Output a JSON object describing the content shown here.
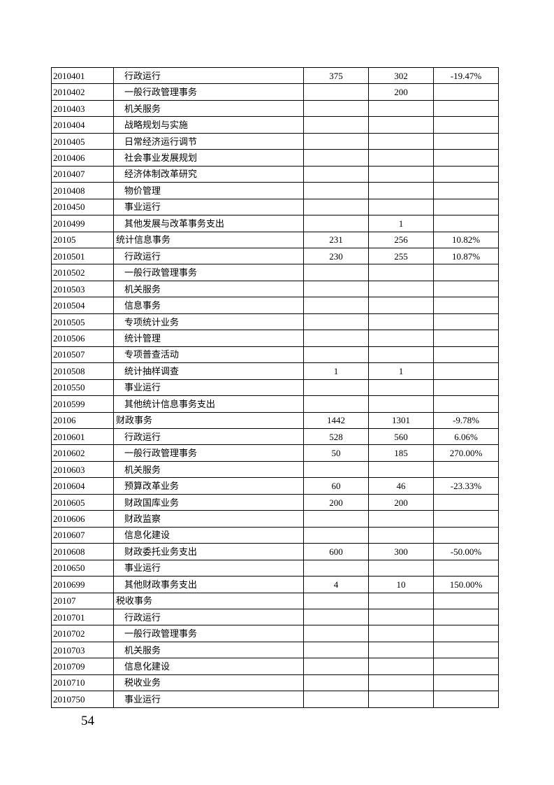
{
  "rows": [
    {
      "code": "2010401",
      "name": "行政运行",
      "level": 2,
      "a": "375",
      "b": "302",
      "c": "-19.47%"
    },
    {
      "code": "2010402",
      "name": "一般行政管理事务",
      "level": 2,
      "a": "",
      "b": "200",
      "c": ""
    },
    {
      "code": "2010403",
      "name": "机关服务",
      "level": 2,
      "a": "",
      "b": "",
      "c": ""
    },
    {
      "code": "2010404",
      "name": "战略规划与实施",
      "level": 2,
      "a": "",
      "b": "",
      "c": ""
    },
    {
      "code": "2010405",
      "name": "日常经济运行调节",
      "level": 2,
      "a": "",
      "b": "",
      "c": ""
    },
    {
      "code": "2010406",
      "name": "社会事业发展规划",
      "level": 2,
      "a": "",
      "b": "",
      "c": ""
    },
    {
      "code": "2010407",
      "name": "经济体制改革研究",
      "level": 2,
      "a": "",
      "b": "",
      "c": ""
    },
    {
      "code": "2010408",
      "name": "物价管理",
      "level": 2,
      "a": "",
      "b": "",
      "c": ""
    },
    {
      "code": "2010450",
      "name": "事业运行",
      "level": 2,
      "a": "",
      "b": "",
      "c": ""
    },
    {
      "code": "2010499",
      "name": "其他发展与改革事务支出",
      "level": 2,
      "a": "",
      "b": "1",
      "c": ""
    },
    {
      "code": "20105",
      "name": "统计信息事务",
      "level": 1,
      "a": "231",
      "b": "256",
      "c": "10.82%"
    },
    {
      "code": "2010501",
      "name": "行政运行",
      "level": 2,
      "a": "230",
      "b": "255",
      "c": "10.87%"
    },
    {
      "code": "2010502",
      "name": "一般行政管理事务",
      "level": 2,
      "a": "",
      "b": "",
      "c": ""
    },
    {
      "code": "2010503",
      "name": "机关服务",
      "level": 2,
      "a": "",
      "b": "",
      "c": ""
    },
    {
      "code": "2010504",
      "name": "信息事务",
      "level": 2,
      "a": "",
      "b": "",
      "c": ""
    },
    {
      "code": "2010505",
      "name": "专项统计业务",
      "level": 2,
      "a": "",
      "b": "",
      "c": ""
    },
    {
      "code": "2010506",
      "name": "统计管理",
      "level": 2,
      "a": "",
      "b": "",
      "c": ""
    },
    {
      "code": "2010507",
      "name": "专项普查活动",
      "level": 2,
      "a": "",
      "b": "",
      "c": ""
    },
    {
      "code": "2010508",
      "name": "统计抽样调查",
      "level": 2,
      "a": "1",
      "b": "1",
      "c": ""
    },
    {
      "code": "2010550",
      "name": "事业运行",
      "level": 2,
      "a": "",
      "b": "",
      "c": ""
    },
    {
      "code": "2010599",
      "name": "其他统计信息事务支出",
      "level": 2,
      "a": "",
      "b": "",
      "c": ""
    },
    {
      "code": "20106",
      "name": "财政事务",
      "level": 1,
      "a": "1442",
      "b": "1301",
      "c": "-9.78%"
    },
    {
      "code": "2010601",
      "name": "行政运行",
      "level": 2,
      "a": "528",
      "b": "560",
      "c": "6.06%"
    },
    {
      "code": "2010602",
      "name": "一般行政管理事务",
      "level": 2,
      "a": "50",
      "b": "185",
      "c": "270.00%"
    },
    {
      "code": "2010603",
      "name": "机关服务",
      "level": 2,
      "a": "",
      "b": "",
      "c": ""
    },
    {
      "code": "2010604",
      "name": "预算改革业务",
      "level": 2,
      "a": "60",
      "b": "46",
      "c": "-23.33%"
    },
    {
      "code": "2010605",
      "name": "财政国库业务",
      "level": 2,
      "a": "200",
      "b": "200",
      "c": ""
    },
    {
      "code": "2010606",
      "name": "财政监察",
      "level": 2,
      "a": "",
      "b": "",
      "c": ""
    },
    {
      "code": "2010607",
      "name": "信息化建设",
      "level": 2,
      "a": "",
      "b": "",
      "c": ""
    },
    {
      "code": "2010608",
      "name": "财政委托业务支出",
      "level": 2,
      "a": "600",
      "b": "300",
      "c": "-50.00%"
    },
    {
      "code": "2010650",
      "name": "事业运行",
      "level": 2,
      "a": "",
      "b": "",
      "c": ""
    },
    {
      "code": "2010699",
      "name": "其他财政事务支出",
      "level": 2,
      "a": "4",
      "b": "10",
      "c": "150.00%"
    },
    {
      "code": "20107",
      "name": "税收事务",
      "level": 1,
      "a": "",
      "b": "",
      "c": ""
    },
    {
      "code": "2010701",
      "name": "行政运行",
      "level": 2,
      "a": "",
      "b": "",
      "c": ""
    },
    {
      "code": "2010702",
      "name": "一般行政管理事务",
      "level": 2,
      "a": "",
      "b": "",
      "c": ""
    },
    {
      "code": "2010703",
      "name": "机关服务",
      "level": 2,
      "a": "",
      "b": "",
      "c": ""
    },
    {
      "code": "2010709",
      "name": "信息化建设",
      "level": 2,
      "a": "",
      "b": "",
      "c": ""
    },
    {
      "code": "2010710",
      "name": "税收业务",
      "level": 2,
      "a": "",
      "b": "",
      "c": ""
    },
    {
      "code": "2010750",
      "name": "事业运行",
      "level": 2,
      "a": "",
      "b": "",
      "c": ""
    }
  ],
  "page_number": "54"
}
